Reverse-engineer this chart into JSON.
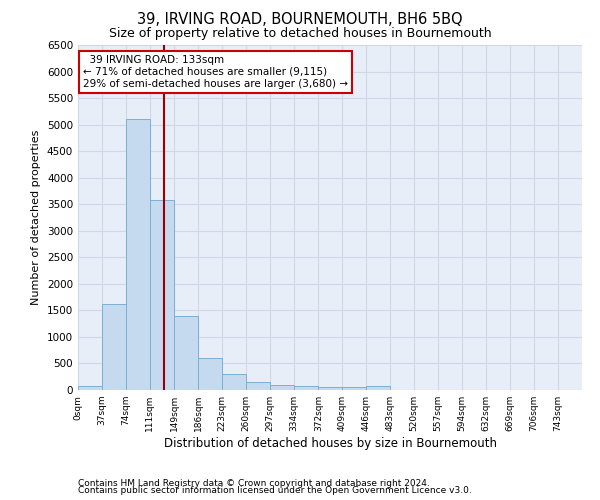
{
  "title": "39, IRVING ROAD, BOURNEMOUTH, BH6 5BQ",
  "subtitle": "Size of property relative to detached houses in Bournemouth",
  "xlabel": "Distribution of detached houses by size in Bournemouth",
  "ylabel": "Number of detached properties",
  "footnote1": "Contains HM Land Registry data © Crown copyright and database right 2024.",
  "footnote2": "Contains public sector information licensed under the Open Government Licence v3.0.",
  "bar_color": "#c5d9ef",
  "bar_edge_color": "#7aafd4",
  "background_color": "#e8eef8",
  "grid_color": "#d0d8e8",
  "annotation_text": "  39 IRVING ROAD: 133sqm\n← 71% of detached houses are smaller (9,115)\n29% of semi-detached houses are larger (3,680) →",
  "annotation_box_color": "#ffffff",
  "annotation_edge_color": "#cc0000",
  "property_line_color": "#990000",
  "property_line_x": 133,
  "categories": [
    "0sqm",
    "37sqm",
    "74sqm",
    "111sqm",
    "149sqm",
    "186sqm",
    "223sqm",
    "260sqm",
    "297sqm",
    "334sqm",
    "372sqm",
    "409sqm",
    "446sqm",
    "483sqm",
    "520sqm",
    "557sqm",
    "594sqm",
    "632sqm",
    "669sqm",
    "706sqm",
    "743sqm"
  ],
  "bin_edges": [
    0,
    37,
    74,
    111,
    149,
    186,
    223,
    260,
    297,
    334,
    372,
    409,
    446,
    483,
    520,
    557,
    594,
    632,
    669,
    706,
    743,
    780
  ],
  "values": [
    75,
    1625,
    5100,
    3575,
    1400,
    600,
    300,
    150,
    100,
    75,
    60,
    50,
    75,
    0,
    0,
    0,
    0,
    0,
    0,
    0,
    0
  ],
  "ylim": [
    0,
    6500
  ],
  "yticks": [
    0,
    500,
    1000,
    1500,
    2000,
    2500,
    3000,
    3500,
    4000,
    4500,
    5000,
    5500,
    6000,
    6500
  ]
}
